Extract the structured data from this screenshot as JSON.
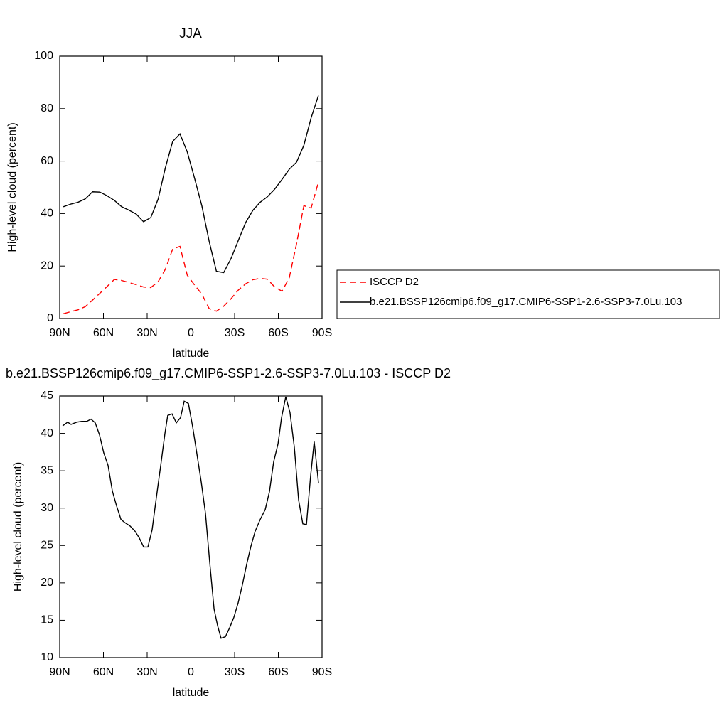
{
  "chart_data": [
    {
      "type": "line",
      "title": "JJA",
      "xlabel": "latitude",
      "ylabel": "High-level cloud (percent)",
      "x": [
        87.5,
        82.5,
        77.5,
        72.5,
        67.5,
        62.5,
        57.5,
        52.5,
        47.5,
        42.5,
        37.5,
        32.5,
        27.5,
        22.5,
        17.5,
        12.5,
        7.5,
        2.5,
        -2.5,
        -7.5,
        -12.5,
        -17.5,
        -22.5,
        -27.5,
        -32.5,
        -37.5,
        -42.5,
        -47.5,
        -52.5,
        -57.5,
        -62.5,
        -67.5,
        -72.5,
        -77.5,
        -82.5,
        -87.5
      ],
      "series": [
        {
          "name": "ISCCP D2",
          "color": "#ff0000",
          "line_style": "dashed",
          "values": [
            1.8,
            2.6,
            3.3,
            4.5,
            7.0,
            9.6,
            12.2,
            14.9,
            14.5,
            13.7,
            12.9,
            12.0,
            11.8,
            14.0,
            18.8,
            26.5,
            27.5,
            16.5,
            12.8,
            9.3,
            3.8,
            2.8,
            4.7,
            7.5,
            10.8,
            13.2,
            14.8,
            15.3,
            15.0,
            12.0,
            10.4,
            15.5,
            28.5,
            43.0,
            42.1,
            52.0
          ]
        },
        {
          "name": "b.e21.BSSP126cmip6.f09_g17.CMIP6-SSP1-2.6-SSP3-7.0Lu.103",
          "color": "#000000",
          "line_style": "solid",
          "values": [
            42.6,
            43.6,
            44.3,
            45.6,
            48.3,
            48.2,
            46.8,
            45.0,
            42.6,
            41.3,
            39.8,
            36.9,
            38.5,
            45.5,
            57.5,
            67.5,
            70.4,
            63.5,
            53.5,
            43.0,
            29.5,
            18.0,
            17.5,
            22.8,
            29.7,
            36.5,
            41.2,
            44.3,
            46.4,
            49.3,
            53.0,
            56.9,
            59.6,
            66.0,
            76.5,
            85.0
          ]
        }
      ],
      "xlim": [
        90,
        -90
      ],
      "xticks": [
        {
          "value": 90,
          "label": "90N"
        },
        {
          "value": 60,
          "label": "60N"
        },
        {
          "value": 30,
          "label": "30N"
        },
        0,
        {
          "value": -30,
          "label": "30S"
        },
        {
          "value": -60,
          "label": "60S"
        },
        {
          "value": -90,
          "label": "90S"
        }
      ],
      "ylim": [
        0,
        100
      ],
      "yticks": [
        0,
        20,
        40,
        60,
        80,
        100
      ],
      "grid": false,
      "legend": "right"
    },
    {
      "type": "line",
      "title": "b.e21.BSSP126cmip6.f09_g17.CMIP6-SSP1-2.6-SSP3-7.0Lu.103 - ISCCP D2",
      "xlabel": "latitude",
      "ylabel": "High-level cloud (percent)",
      "x": [
        88.0,
        84.6,
        82.2,
        78.3,
        74.9,
        71.5,
        68.5,
        65.6,
        62.7,
        59.8,
        56.8,
        53.9,
        51.0,
        48.0,
        45.6,
        41.7,
        38.3,
        35.4,
        32.4,
        29.5,
        26.6,
        23.7,
        20.7,
        17.8,
        15.9,
        12.9,
        10.0,
        7.1,
        4.6,
        1.7,
        -1.2,
        -4.1,
        -7.1,
        -10.0,
        -12.9,
        -15.9,
        -18.3,
        -20.7,
        -23.7,
        -26.6,
        -29.5,
        -32.4,
        -35.4,
        -38.3,
        -41.2,
        -44.1,
        -47.6,
        -51.0,
        -53.9,
        -56.8,
        -59.8,
        -62.2,
        -65.1,
        -68.0,
        -71.0,
        -73.9,
        -76.8,
        -79.3,
        -82.2,
        -84.6,
        -87.6
      ],
      "values": [
        41.0,
        41.5,
        41.2,
        41.5,
        41.6,
        41.6,
        41.9,
        41.4,
        39.8,
        37.4,
        35.7,
        32.3,
        30.3,
        28.5,
        28.1,
        27.6,
        26.9,
        26.0,
        24.8,
        24.8,
        27.1,
        31.4,
        35.7,
        40.0,
        42.4,
        42.6,
        41.4,
        42.1,
        44.3,
        44.0,
        40.9,
        37.3,
        33.5,
        29.3,
        22.8,
        16.5,
        14.3,
        12.6,
        12.8,
        14.0,
        15.4,
        17.3,
        19.8,
        22.5,
        24.9,
        26.9,
        28.5,
        29.8,
        32.2,
        36.2,
        38.6,
        42.1,
        44.9,
        42.8,
        38.1,
        31.1,
        27.9,
        27.8,
        34.4,
        38.9,
        33.3
      ],
      "color": "#000000",
      "line_style": "solid",
      "xlim": [
        90,
        -90
      ],
      "xticks": [
        {
          "value": 90,
          "label": "90N"
        },
        {
          "value": 60,
          "label": "60N"
        },
        {
          "value": 30,
          "label": "30N"
        },
        0,
        {
          "value": -30,
          "label": "30S"
        },
        {
          "value": -60,
          "label": "60S"
        },
        {
          "value": -90,
          "label": "90S"
        }
      ],
      "ylim": [
        10,
        45
      ],
      "yticks": [
        10,
        15,
        20,
        25,
        30,
        35,
        40,
        45
      ],
      "grid": false
    }
  ]
}
